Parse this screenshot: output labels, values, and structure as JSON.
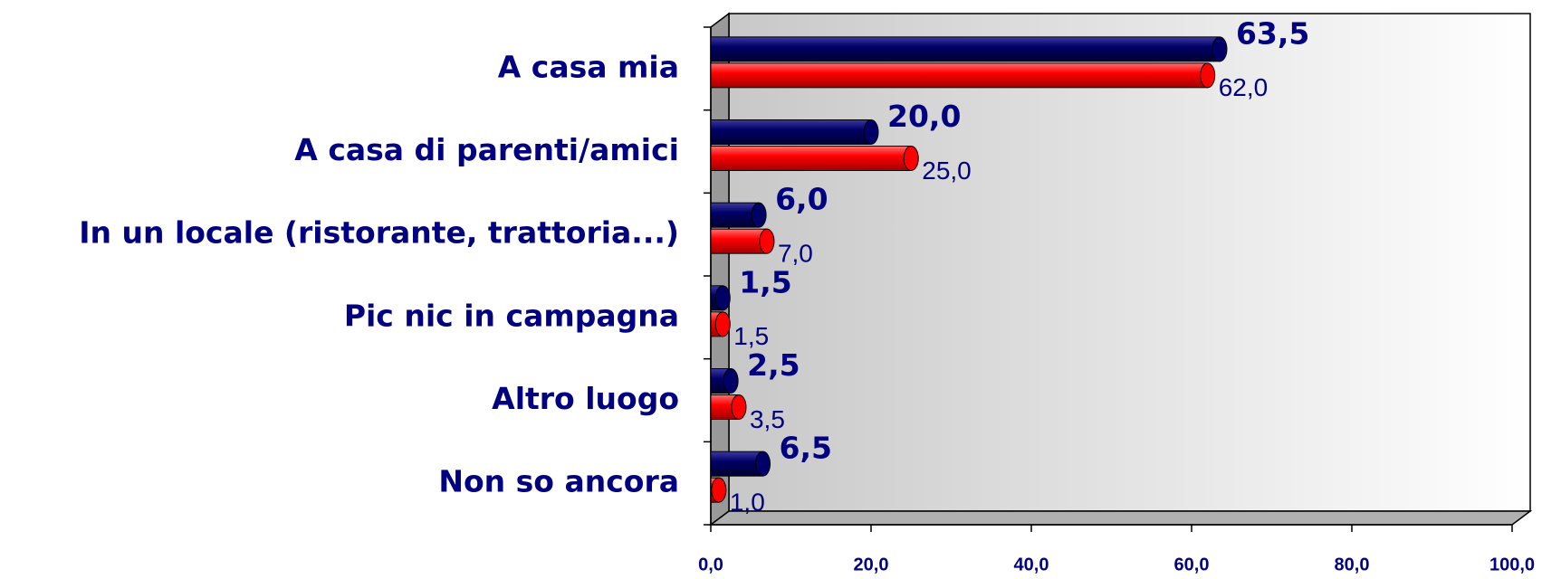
{
  "chart_data": {
    "type": "bar",
    "orientation": "horizontal",
    "categories": [
      "A casa mia",
      "A casa di parenti/amici",
      "In un locale (ristorante, trattoria...)",
      "Pic nic in campagna",
      "Altro luogo",
      "Non so ancora"
    ],
    "series": [
      {
        "color": "#000066",
        "values": [
          63.5,
          20.0,
          6.0,
          1.5,
          2.5,
          6.5
        ],
        "value_labels": [
          "63,5",
          "20,0",
          "6,0",
          "1,5",
          "2,5",
          "6,5"
        ]
      },
      {
        "color": "#ff0000",
        "values": [
          62.0,
          25.0,
          7.0,
          1.5,
          3.5,
          1.0
        ],
        "value_labels": [
          "62,0",
          "25,0",
          "7,0",
          "1,5",
          "3,5",
          "1,0"
        ]
      }
    ],
    "xlim": [
      0,
      100
    ],
    "xticks": [
      {
        "value": 0,
        "label": "0,0"
      },
      {
        "value": 20,
        "label": "20,0"
      },
      {
        "value": 40,
        "label": "40,0"
      },
      {
        "value": 60,
        "label": "60,0"
      },
      {
        "value": 80,
        "label": "80,0"
      },
      {
        "value": 100,
        "label": "100,0"
      }
    ]
  }
}
